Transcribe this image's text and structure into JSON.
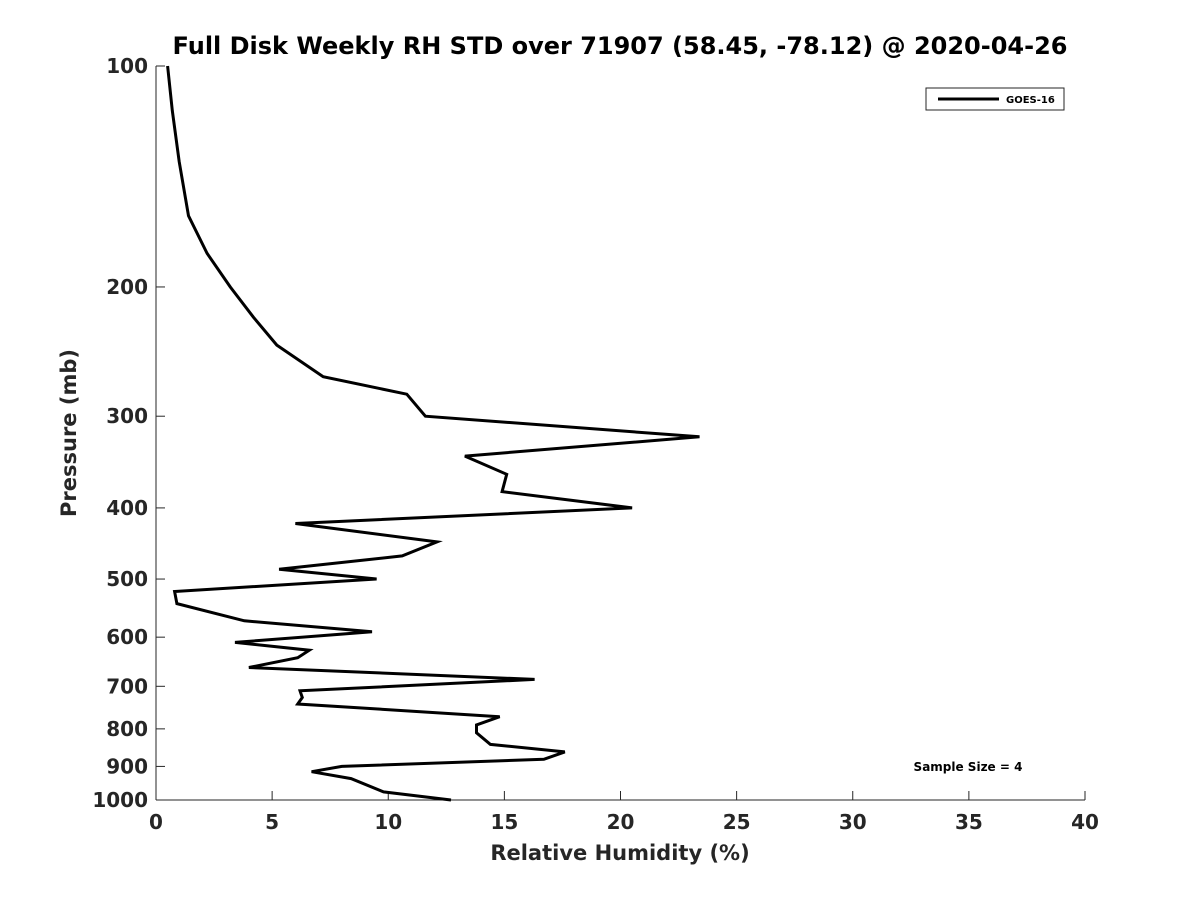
{
  "chart_data": {
    "type": "line",
    "title": "Full Disk Weekly RH STD over 71907 (58.45, -78.12) @ 2020-04-26",
    "xlabel": "Relative Humidity (%)",
    "ylabel": "Pressure (mb)",
    "xlim": [
      0,
      40
    ],
    "ylim": [
      100,
      1000
    ],
    "yscale": "log",
    "y_reversed": true,
    "xticks": [
      "0",
      "5",
      "10",
      "15",
      "20",
      "25",
      "30",
      "35",
      "40"
    ],
    "yticks": [
      "100",
      "200",
      "300",
      "400",
      "500",
      "600",
      "700",
      "800",
      "900",
      "1000"
    ],
    "grid": false,
    "legend": "top-right",
    "annotation": "Sample Size = 4",
    "series": [
      {
        "name": "GOES-16",
        "color": "#000000",
        "points": [
          [
            0.5,
            100
          ],
          [
            0.7,
            115
          ],
          [
            1.0,
            135
          ],
          [
            1.4,
            160
          ],
          [
            2.2,
            180
          ],
          [
            3.2,
            200
          ],
          [
            4.2,
            220
          ],
          [
            5.2,
            240
          ],
          [
            7.2,
            265
          ],
          [
            10.8,
            280
          ],
          [
            11.6,
            300
          ],
          [
            23.4,
            320
          ],
          [
            13.3,
            340
          ],
          [
            15.1,
            360
          ],
          [
            14.9,
            380
          ],
          [
            20.5,
            400
          ],
          [
            6.0,
            420
          ],
          [
            12.1,
            445
          ],
          [
            10.6,
            465
          ],
          [
            5.3,
            485
          ],
          [
            9.5,
            500
          ],
          [
            0.8,
            520
          ],
          [
            0.9,
            540
          ],
          [
            3.8,
            570
          ],
          [
            9.3,
            590
          ],
          [
            3.4,
            610
          ],
          [
            6.6,
            625
          ],
          [
            6.1,
            640
          ],
          [
            4.0,
            660
          ],
          [
            16.3,
            685
          ],
          [
            6.2,
            710
          ],
          [
            6.3,
            725
          ],
          [
            6.1,
            740
          ],
          [
            14.8,
            770
          ],
          [
            13.8,
            790
          ],
          [
            13.8,
            810
          ],
          [
            14.4,
            840
          ],
          [
            17.6,
            860
          ],
          [
            16.7,
            880
          ],
          [
            8.0,
            900
          ],
          [
            6.7,
            915
          ],
          [
            8.4,
            935
          ],
          [
            9.8,
            975
          ],
          [
            12.7,
            1000
          ]
        ]
      }
    ]
  }
}
